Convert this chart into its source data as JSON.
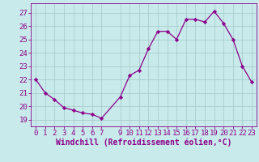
{
  "x": [
    0,
    1,
    2,
    3,
    4,
    5,
    6,
    7,
    9,
    10,
    11,
    12,
    13,
    14,
    15,
    16,
    17,
    18,
    19,
    20,
    21,
    22,
    23
  ],
  "y": [
    22.0,
    21.0,
    20.5,
    19.9,
    19.7,
    19.5,
    19.4,
    19.1,
    20.7,
    22.3,
    22.7,
    24.3,
    25.6,
    25.6,
    25.0,
    26.5,
    26.5,
    26.3,
    27.1,
    26.2,
    25.0,
    23.0,
    21.8
  ],
  "xticks": [
    0,
    1,
    2,
    3,
    4,
    5,
    6,
    7,
    9,
    10,
    11,
    12,
    13,
    14,
    15,
    16,
    17,
    18,
    19,
    20,
    21,
    22,
    23
  ],
  "yticks": [
    19,
    20,
    21,
    22,
    23,
    24,
    25,
    26,
    27
  ],
  "ylim": [
    18.5,
    27.7
  ],
  "xlim": [
    -0.5,
    23.5
  ],
  "xlabel": "Windchill (Refroidissement éolien,°C)",
  "line_color": "#8b008b",
  "marker_color": "#8b008b",
  "bg_color": "#c8eaea",
  "grid_color": "#a8cece",
  "spine_color": "#8b008b",
  "tick_color": "#8b008b",
  "label_color": "#8b008b",
  "font_size": 6.5,
  "xlabel_fontsize": 7.0
}
